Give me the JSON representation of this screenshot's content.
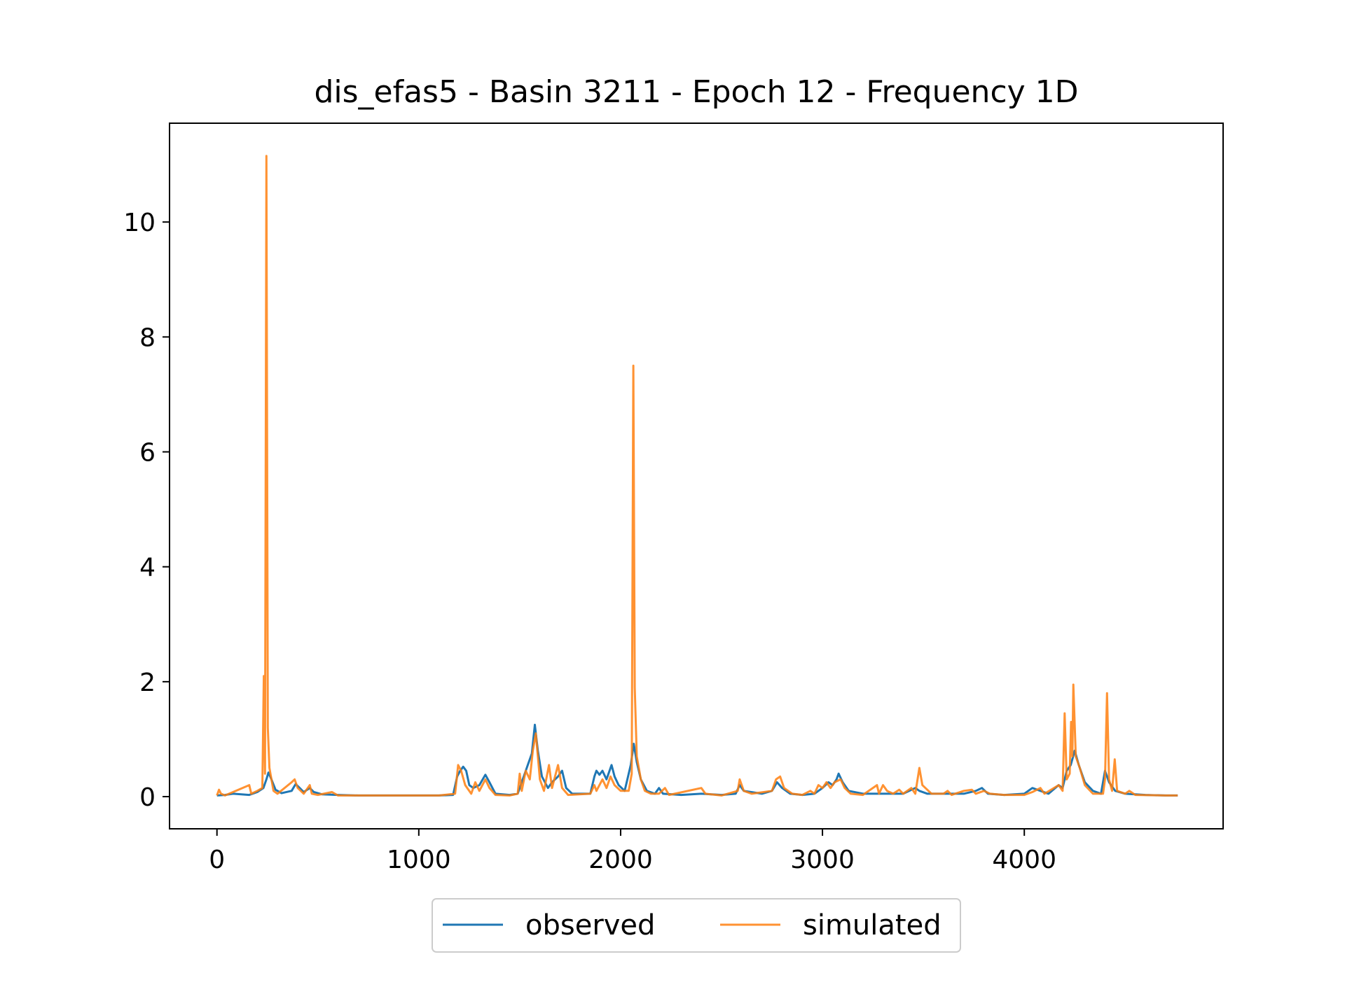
{
  "chart_data": {
    "type": "line",
    "title": "dis_efas5 - Basin 3211 - Epoch 12 - Frequency 1D",
    "xlabel": "",
    "ylabel": "",
    "xlim": [
      -235,
      4985
    ],
    "ylim": [
      -0.56,
      11.72
    ],
    "xticks": [
      0,
      1000,
      2000,
      3000,
      4000
    ],
    "yticks": [
      0,
      2,
      4,
      6,
      8,
      10
    ],
    "grid": false,
    "legend": {
      "placement": "bottom-center, below axes",
      "columns": 2
    },
    "colors": {
      "observed": "#1f77b4",
      "simulated": "#ff7f0e"
    },
    "series": [
      {
        "name": "observed",
        "points": [
          [
            0,
            0.02
          ],
          [
            40,
            0.03
          ],
          [
            80,
            0.05
          ],
          [
            160,
            0.03
          ],
          [
            200,
            0.08
          ],
          [
            230,
            0.15
          ],
          [
            245,
            0.3
          ],
          [
            255,
            0.42
          ],
          [
            270,
            0.3
          ],
          [
            290,
            0.12
          ],
          [
            320,
            0.06
          ],
          [
            370,
            0.1
          ],
          [
            390,
            0.22
          ],
          [
            410,
            0.15
          ],
          [
            430,
            0.08
          ],
          [
            460,
            0.15
          ],
          [
            480,
            0.08
          ],
          [
            520,
            0.04
          ],
          [
            600,
            0.03
          ],
          [
            700,
            0.02
          ],
          [
            800,
            0.02
          ],
          [
            1000,
            0.02
          ],
          [
            1100,
            0.02
          ],
          [
            1170,
            0.03
          ],
          [
            1190,
            0.35
          ],
          [
            1205,
            0.45
          ],
          [
            1220,
            0.52
          ],
          [
            1235,
            0.45
          ],
          [
            1250,
            0.2
          ],
          [
            1270,
            0.15
          ],
          [
            1300,
            0.2
          ],
          [
            1330,
            0.38
          ],
          [
            1350,
            0.25
          ],
          [
            1380,
            0.05
          ],
          [
            1450,
            0.03
          ],
          [
            1490,
            0.05
          ],
          [
            1510,
            0.25
          ],
          [
            1540,
            0.55
          ],
          [
            1560,
            0.75
          ],
          [
            1575,
            1.25
          ],
          [
            1590,
            0.8
          ],
          [
            1610,
            0.35
          ],
          [
            1640,
            0.15
          ],
          [
            1660,
            0.25
          ],
          [
            1690,
            0.35
          ],
          [
            1710,
            0.45
          ],
          [
            1730,
            0.15
          ],
          [
            1760,
            0.05
          ],
          [
            1850,
            0.05
          ],
          [
            1870,
            0.35
          ],
          [
            1880,
            0.45
          ],
          [
            1895,
            0.38
          ],
          [
            1910,
            0.45
          ],
          [
            1930,
            0.3
          ],
          [
            1955,
            0.55
          ],
          [
            1970,
            0.35
          ],
          [
            1990,
            0.2
          ],
          [
            2020,
            0.1
          ],
          [
            2050,
            0.55
          ],
          [
            2065,
            0.92
          ],
          [
            2080,
            0.6
          ],
          [
            2100,
            0.3
          ],
          [
            2130,
            0.1
          ],
          [
            2170,
            0.05
          ],
          [
            2190,
            0.15
          ],
          [
            2210,
            0.05
          ],
          [
            2300,
            0.03
          ],
          [
            2400,
            0.05
          ],
          [
            2500,
            0.03
          ],
          [
            2570,
            0.05
          ],
          [
            2590,
            0.2
          ],
          [
            2610,
            0.1
          ],
          [
            2700,
            0.05
          ],
          [
            2750,
            0.1
          ],
          [
            2775,
            0.25
          ],
          [
            2800,
            0.15
          ],
          [
            2840,
            0.05
          ],
          [
            2900,
            0.03
          ],
          [
            2960,
            0.05
          ],
          [
            3000,
            0.15
          ],
          [
            3030,
            0.25
          ],
          [
            3050,
            0.2
          ],
          [
            3070,
            0.3
          ],
          [
            3080,
            0.4
          ],
          [
            3100,
            0.25
          ],
          [
            3130,
            0.1
          ],
          [
            3200,
            0.05
          ],
          [
            3300,
            0.05
          ],
          [
            3400,
            0.05
          ],
          [
            3460,
            0.15
          ],
          [
            3480,
            0.1
          ],
          [
            3520,
            0.05
          ],
          [
            3600,
            0.05
          ],
          [
            3700,
            0.05
          ],
          [
            3760,
            0.1
          ],
          [
            3790,
            0.15
          ],
          [
            3820,
            0.05
          ],
          [
            3900,
            0.03
          ],
          [
            4000,
            0.05
          ],
          [
            4040,
            0.15
          ],
          [
            4080,
            0.1
          ],
          [
            4120,
            0.05
          ],
          [
            4170,
            0.2
          ],
          [
            4190,
            0.15
          ],
          [
            4210,
            0.45
          ],
          [
            4230,
            0.55
          ],
          [
            4250,
            0.8
          ],
          [
            4270,
            0.55
          ],
          [
            4300,
            0.25
          ],
          [
            4340,
            0.1
          ],
          [
            4380,
            0.05
          ],
          [
            4400,
            0.45
          ],
          [
            4420,
            0.25
          ],
          [
            4450,
            0.1
          ],
          [
            4500,
            0.05
          ],
          [
            4600,
            0.03
          ],
          [
            4700,
            0.02
          ],
          [
            4760,
            0.02
          ]
        ]
      },
      {
        "name": "simulated",
        "points": [
          [
            0,
            0.02
          ],
          [
            10,
            0.12
          ],
          [
            20,
            0.05
          ],
          [
            40,
            0.02
          ],
          [
            160,
            0.2
          ],
          [
            170,
            0.05
          ],
          [
            200,
            0.1
          ],
          [
            225,
            0.15
          ],
          [
            232,
            2.1
          ],
          [
            238,
            0.4
          ],
          [
            245,
            11.15
          ],
          [
            252,
            1.2
          ],
          [
            260,
            0.5
          ],
          [
            280,
            0.1
          ],
          [
            300,
            0.05
          ],
          [
            370,
            0.25
          ],
          [
            385,
            0.3
          ],
          [
            400,
            0.15
          ],
          [
            430,
            0.05
          ],
          [
            460,
            0.2
          ],
          [
            470,
            0.05
          ],
          [
            500,
            0.03
          ],
          [
            570,
            0.08
          ],
          [
            600,
            0.02
          ],
          [
            700,
            0.02
          ],
          [
            800,
            0.02
          ],
          [
            900,
            0.02
          ],
          [
            1000,
            0.02
          ],
          [
            1100,
            0.02
          ],
          [
            1180,
            0.05
          ],
          [
            1195,
            0.55
          ],
          [
            1210,
            0.45
          ],
          [
            1230,
            0.2
          ],
          [
            1260,
            0.05
          ],
          [
            1280,
            0.25
          ],
          [
            1300,
            0.1
          ],
          [
            1330,
            0.3
          ],
          [
            1350,
            0.15
          ],
          [
            1380,
            0.03
          ],
          [
            1450,
            0.02
          ],
          [
            1490,
            0.05
          ],
          [
            1500,
            0.4
          ],
          [
            1510,
            0.1
          ],
          [
            1530,
            0.45
          ],
          [
            1550,
            0.3
          ],
          [
            1565,
            0.8
          ],
          [
            1580,
            1.1
          ],
          [
            1600,
            0.3
          ],
          [
            1620,
            0.1
          ],
          [
            1645,
            0.55
          ],
          [
            1660,
            0.15
          ],
          [
            1690,
            0.55
          ],
          [
            1710,
            0.15
          ],
          [
            1740,
            0.03
          ],
          [
            1850,
            0.05
          ],
          [
            1870,
            0.2
          ],
          [
            1880,
            0.1
          ],
          [
            1910,
            0.3
          ],
          [
            1930,
            0.15
          ],
          [
            1950,
            0.35
          ],
          [
            1970,
            0.2
          ],
          [
            2000,
            0.1
          ],
          [
            2040,
            0.1
          ],
          [
            2055,
            0.4
          ],
          [
            2063,
            7.5
          ],
          [
            2070,
            1.9
          ],
          [
            2080,
            0.7
          ],
          [
            2100,
            0.3
          ],
          [
            2120,
            0.1
          ],
          [
            2150,
            0.05
          ],
          [
            2190,
            0.05
          ],
          [
            2220,
            0.15
          ],
          [
            2240,
            0.03
          ],
          [
            2400,
            0.15
          ],
          [
            2420,
            0.05
          ],
          [
            2500,
            0.02
          ],
          [
            2580,
            0.1
          ],
          [
            2590,
            0.3
          ],
          [
            2610,
            0.1
          ],
          [
            2650,
            0.05
          ],
          [
            2750,
            0.1
          ],
          [
            2770,
            0.3
          ],
          [
            2790,
            0.35
          ],
          [
            2810,
            0.15
          ],
          [
            2850,
            0.05
          ],
          [
            2900,
            0.03
          ],
          [
            2940,
            0.1
          ],
          [
            2960,
            0.05
          ],
          [
            2980,
            0.2
          ],
          [
            3000,
            0.15
          ],
          [
            3020,
            0.25
          ],
          [
            3040,
            0.15
          ],
          [
            3060,
            0.25
          ],
          [
            3090,
            0.3
          ],
          [
            3110,
            0.15
          ],
          [
            3140,
            0.05
          ],
          [
            3200,
            0.03
          ],
          [
            3270,
            0.2
          ],
          [
            3280,
            0.05
          ],
          [
            3300,
            0.2
          ],
          [
            3320,
            0.1
          ],
          [
            3350,
            0.05
          ],
          [
            3380,
            0.12
          ],
          [
            3400,
            0.05
          ],
          [
            3440,
            0.15
          ],
          [
            3460,
            0.05
          ],
          [
            3480,
            0.5
          ],
          [
            3495,
            0.2
          ],
          [
            3510,
            0.15
          ],
          [
            3540,
            0.05
          ],
          [
            3600,
            0.05
          ],
          [
            3620,
            0.1
          ],
          [
            3640,
            0.03
          ],
          [
            3700,
            0.1
          ],
          [
            3740,
            0.12
          ],
          [
            3760,
            0.05
          ],
          [
            3800,
            0.1
          ],
          [
            3830,
            0.05
          ],
          [
            3900,
            0.03
          ],
          [
            4000,
            0.03
          ],
          [
            4040,
            0.08
          ],
          [
            4080,
            0.15
          ],
          [
            4100,
            0.05
          ],
          [
            4170,
            0.2
          ],
          [
            4190,
            0.1
          ],
          [
            4200,
            1.45
          ],
          [
            4210,
            0.3
          ],
          [
            4225,
            0.4
          ],
          [
            4232,
            1.3
          ],
          [
            4238,
            0.7
          ],
          [
            4243,
            1.95
          ],
          [
            4255,
            0.7
          ],
          [
            4275,
            0.5
          ],
          [
            4300,
            0.2
          ],
          [
            4340,
            0.05
          ],
          [
            4390,
            0.05
          ],
          [
            4400,
            0.3
          ],
          [
            4410,
            1.8
          ],
          [
            4420,
            0.3
          ],
          [
            4435,
            0.1
          ],
          [
            4448,
            0.65
          ],
          [
            4460,
            0.1
          ],
          [
            4500,
            0.05
          ],
          [
            4520,
            0.1
          ],
          [
            4550,
            0.03
          ],
          [
            4700,
            0.02
          ],
          [
            4760,
            0.02
          ]
        ]
      }
    ]
  }
}
